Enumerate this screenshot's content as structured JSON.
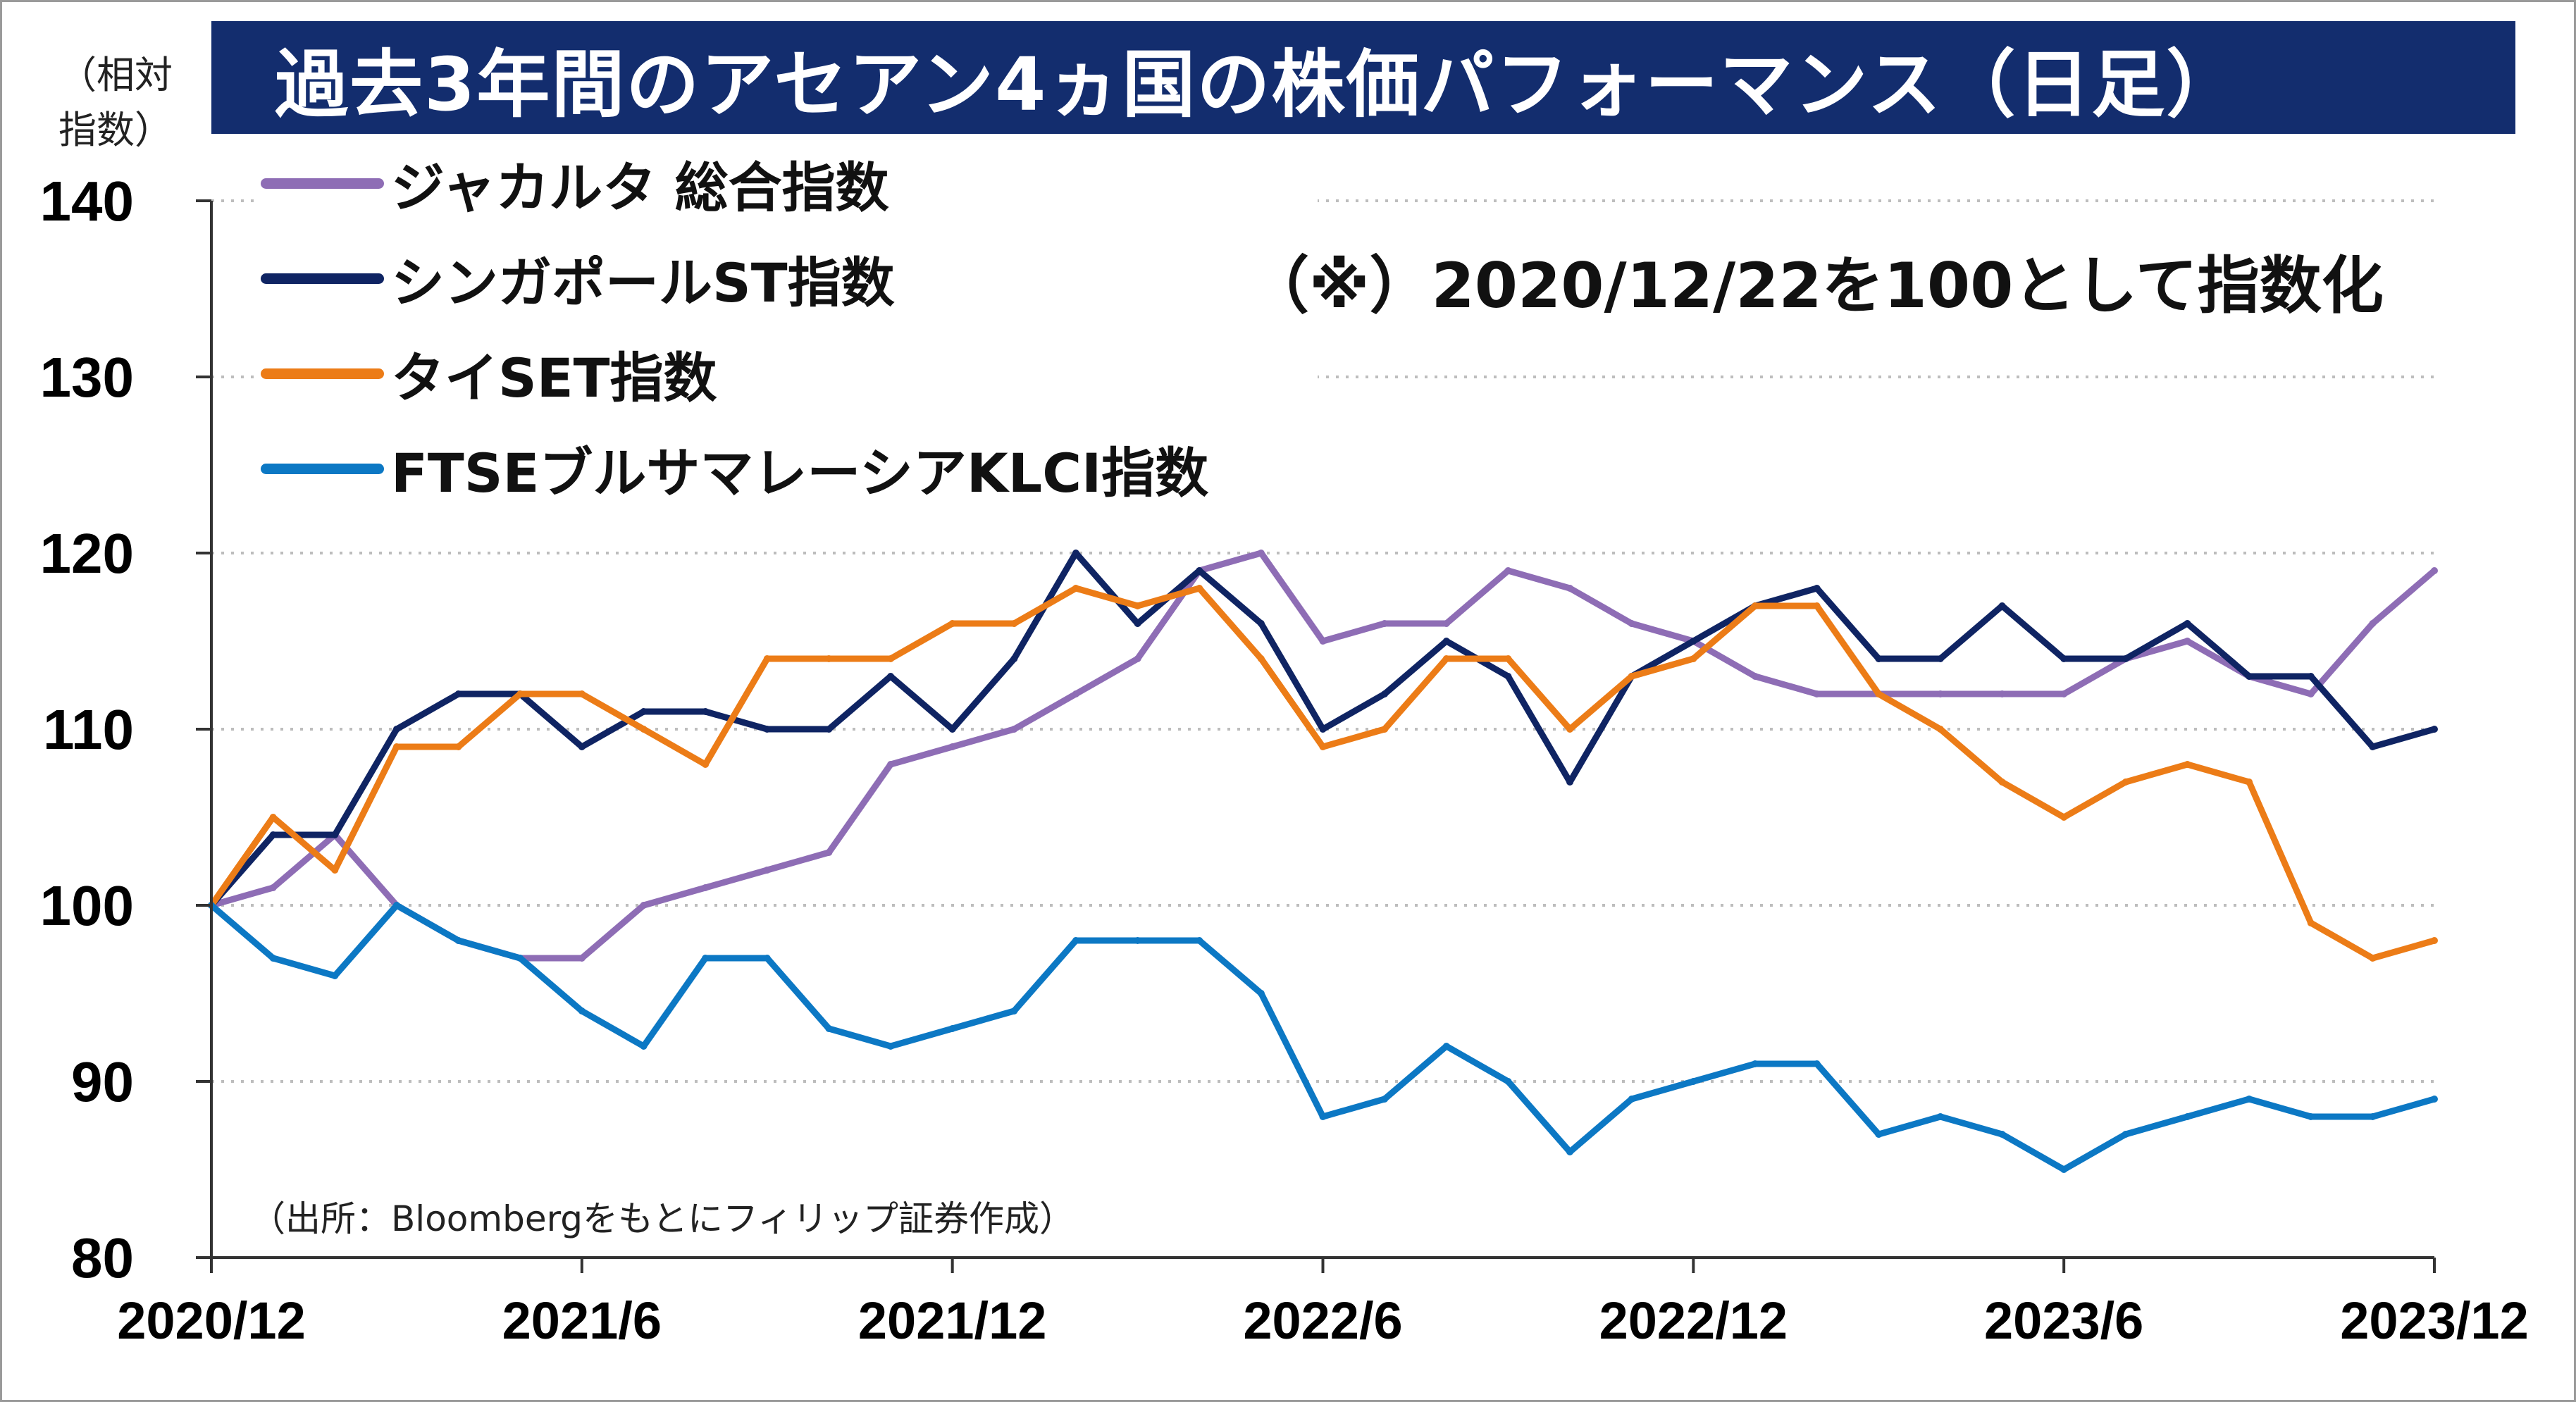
{
  "title": "過去3年間のアセアン4ヵ国の株価パフォーマンス（日足）",
  "note": "（※）2020/12/22を100として指数化",
  "source": "（出所：Bloombergをもとにフィリップ証券作成）",
  "chart_data": {
    "type": "line",
    "title": "過去3年間のアセアン4ヵ国の株価パフォーマンス（日足）",
    "ylabel": "（相対\n指数）",
    "xlabel": "",
    "ylim": [
      80,
      140
    ],
    "yticks": [
      "80",
      "90",
      "100",
      "110",
      "120",
      "130",
      "140"
    ],
    "xticks": [
      "2020/12",
      "2021/6",
      "2021/12",
      "2022/6",
      "2022/12",
      "2023/6",
      "2023/12"
    ],
    "x": [
      "2020/12",
      "2021/1",
      "2021/2",
      "2021/3",
      "2021/4",
      "2021/5",
      "2021/6",
      "2021/7",
      "2021/8",
      "2021/9",
      "2021/10",
      "2021/11",
      "2021/12",
      "2022/1",
      "2022/2",
      "2022/3",
      "2022/4",
      "2022/5",
      "2022/6",
      "2022/7",
      "2022/8",
      "2022/9",
      "2022/10",
      "2022/11",
      "2022/12",
      "2023/1",
      "2023/2",
      "2023/3",
      "2023/4",
      "2023/5",
      "2023/6",
      "2023/7",
      "2023/8",
      "2023/9",
      "2023/10",
      "2023/11",
      "2023/12"
    ],
    "grid": true,
    "legend_position": "top-left",
    "series": [
      {
        "name": "ジャカルタ 総合指数",
        "color": "#8e6db5",
        "values": [
          100,
          101,
          104,
          100,
          98,
          97,
          97,
          100,
          101,
          102,
          103,
          108,
          109,
          110,
          112,
          114,
          119,
          120,
          115,
          116,
          116,
          119,
          118,
          116,
          115,
          113,
          112,
          112,
          112,
          112,
          112,
          114,
          115,
          113,
          112,
          116,
          119
        ]
      },
      {
        "name": "シンガポールST指数",
        "color": "#0f2463",
        "values": [
          100,
          104,
          104,
          110,
          112,
          112,
          109,
          111,
          111,
          110,
          110,
          113,
          110,
          114,
          120,
          116,
          119,
          116,
          110,
          112,
          115,
          113,
          107,
          113,
          115,
          117,
          118,
          114,
          114,
          117,
          114,
          114,
          116,
          113,
          113,
          109,
          110
        ]
      },
      {
        "name": "タイSET指数",
        "color": "#ec7c17",
        "values": [
          100,
          105,
          102,
          109,
          109,
          112,
          112,
          110,
          108,
          114,
          114,
          114,
          116,
          116,
          118,
          117,
          118,
          114,
          109,
          110,
          114,
          114,
          110,
          113,
          114,
          117,
          117,
          112,
          110,
          107,
          105,
          107,
          108,
          107,
          99,
          97,
          98
        ]
      },
      {
        "name": "FTSEブルサマレーシアKLCI指数",
        "color": "#0c78c4",
        "values": [
          100,
          97,
          96,
          100,
          98,
          97,
          94,
          92,
          97,
          97,
          93,
          92,
          93,
          94,
          98,
          98,
          98,
          95,
          88,
          89,
          92,
          90,
          86,
          89,
          90,
          91,
          91,
          87,
          88,
          87,
          85,
          87,
          88,
          89,
          88,
          88,
          89
        ]
      }
    ]
  }
}
